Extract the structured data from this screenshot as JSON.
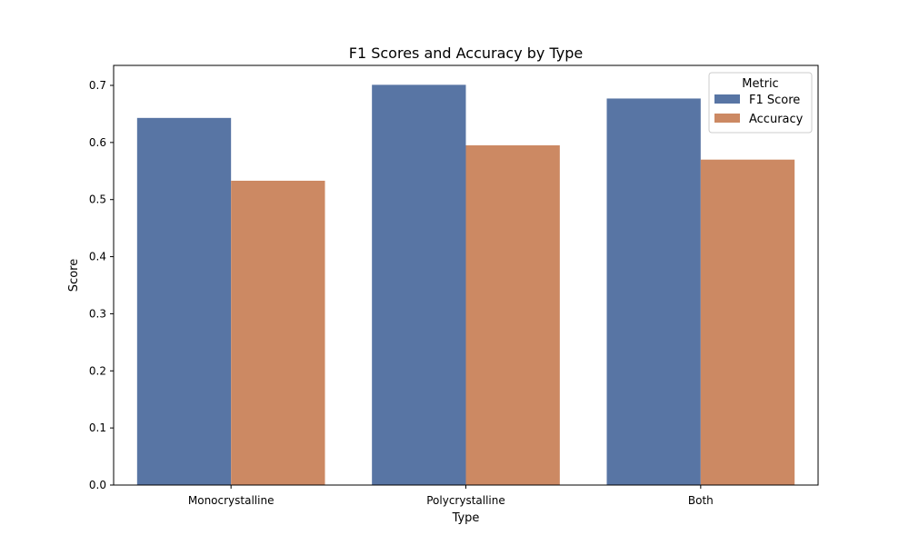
{
  "chart_data": {
    "type": "bar",
    "title": "F1 Scores and Accuracy by Type",
    "xlabel": "Type",
    "ylabel": "Score",
    "categories": [
      "Monocrystalline",
      "Polycrystalline",
      "Both"
    ],
    "series": [
      {
        "name": "F1 Score",
        "values": [
          0.643,
          0.701,
          0.677
        ],
        "color": "#5875a4"
      },
      {
        "name": "Accuracy",
        "values": [
          0.533,
          0.595,
          0.57
        ],
        "color": "#cc8963"
      }
    ],
    "ylim": [
      0,
      0.735
    ],
    "yticks": [
      "0.0",
      "0.1",
      "0.2",
      "0.3",
      "0.4",
      "0.5",
      "0.6",
      "0.7"
    ],
    "grid": false,
    "legend": {
      "title": "Metric",
      "placement": "top-right"
    }
  }
}
